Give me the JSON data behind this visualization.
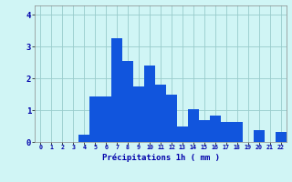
{
  "categories": [
    0,
    1,
    2,
    3,
    4,
    5,
    6,
    7,
    8,
    9,
    10,
    11,
    12,
    13,
    14,
    15,
    16,
    17,
    18,
    19,
    20,
    21,
    22
  ],
  "values": [
    0,
    0,
    0,
    0,
    0.22,
    1.42,
    1.42,
    3.28,
    2.55,
    1.75,
    2.42,
    1.82,
    1.5,
    0.48,
    1.02,
    0.7,
    0.82,
    0.62,
    0.62,
    0.0,
    0.38,
    0.0,
    0.32
  ],
  "bar_color": "#1155dd",
  "background_color": "#d0f5f5",
  "grid_color": "#99cccc",
  "xlabel": "Précipitations 1h ( mm )",
  "xlabel_color": "#0000aa",
  "tick_color": "#0000aa",
  "ylim": [
    0,
    4.3
  ],
  "yticks": [
    0,
    1,
    2,
    3,
    4
  ],
  "bar_width": 1.0
}
